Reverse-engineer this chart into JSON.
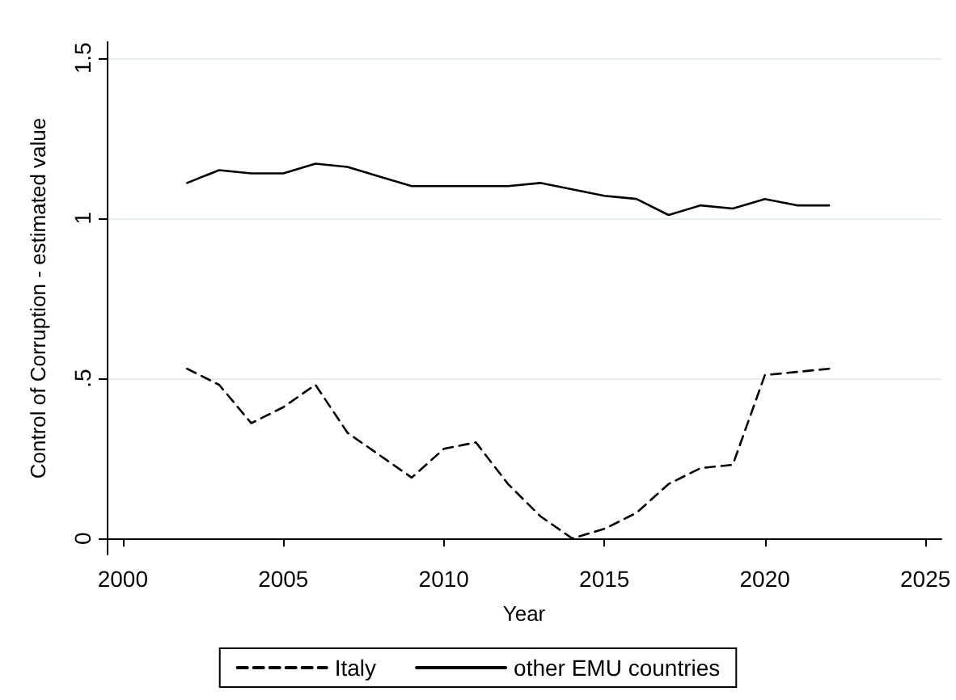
{
  "chart_data": {
    "type": "line",
    "xlabel": "Year",
    "ylabel": "Control of Corruption - estimated value",
    "x": [
      2002,
      2003,
      2004,
      2005,
      2006,
      2007,
      2008,
      2009,
      2010,
      2011,
      2012,
      2013,
      2014,
      2015,
      2016,
      2017,
      2018,
      2019,
      2020,
      2021,
      2022
    ],
    "series": [
      {
        "name": "Italy",
        "color": "#000000",
        "line_style": "dashed",
        "values": [
          0.53,
          0.48,
          0.36,
          0.41,
          0.48,
          0.33,
          0.26,
          0.19,
          0.28,
          0.3,
          0.17,
          0.07,
          0.0,
          0.03,
          0.08,
          0.17,
          0.22,
          0.23,
          0.51,
          0.52,
          0.53
        ]
      },
      {
        "name": "other EMU countries",
        "color": "#000000",
        "line_style": "solid",
        "values": [
          1.11,
          1.15,
          1.14,
          1.14,
          1.17,
          1.16,
          1.13,
          1.1,
          1.1,
          1.1,
          1.1,
          1.11,
          1.09,
          1.07,
          1.06,
          1.01,
          1.04,
          1.03,
          1.06,
          1.04,
          1.04
        ]
      }
    ],
    "xlim": [
      1999.5,
      2025.5
    ],
    "xticks": [
      2000,
      2005,
      2010,
      2015,
      2020,
      2025
    ],
    "ylim": [
      -0.05,
      1.55
    ],
    "yticks": [
      {
        "value": 0,
        "label": "0"
      },
      {
        "value": 0.5,
        "label": ".5"
      },
      {
        "value": 1,
        "label": "1"
      },
      {
        "value": 1.5,
        "label": "1.5"
      }
    ],
    "grid": "y",
    "legend": "bottom",
    "marker": "none"
  }
}
